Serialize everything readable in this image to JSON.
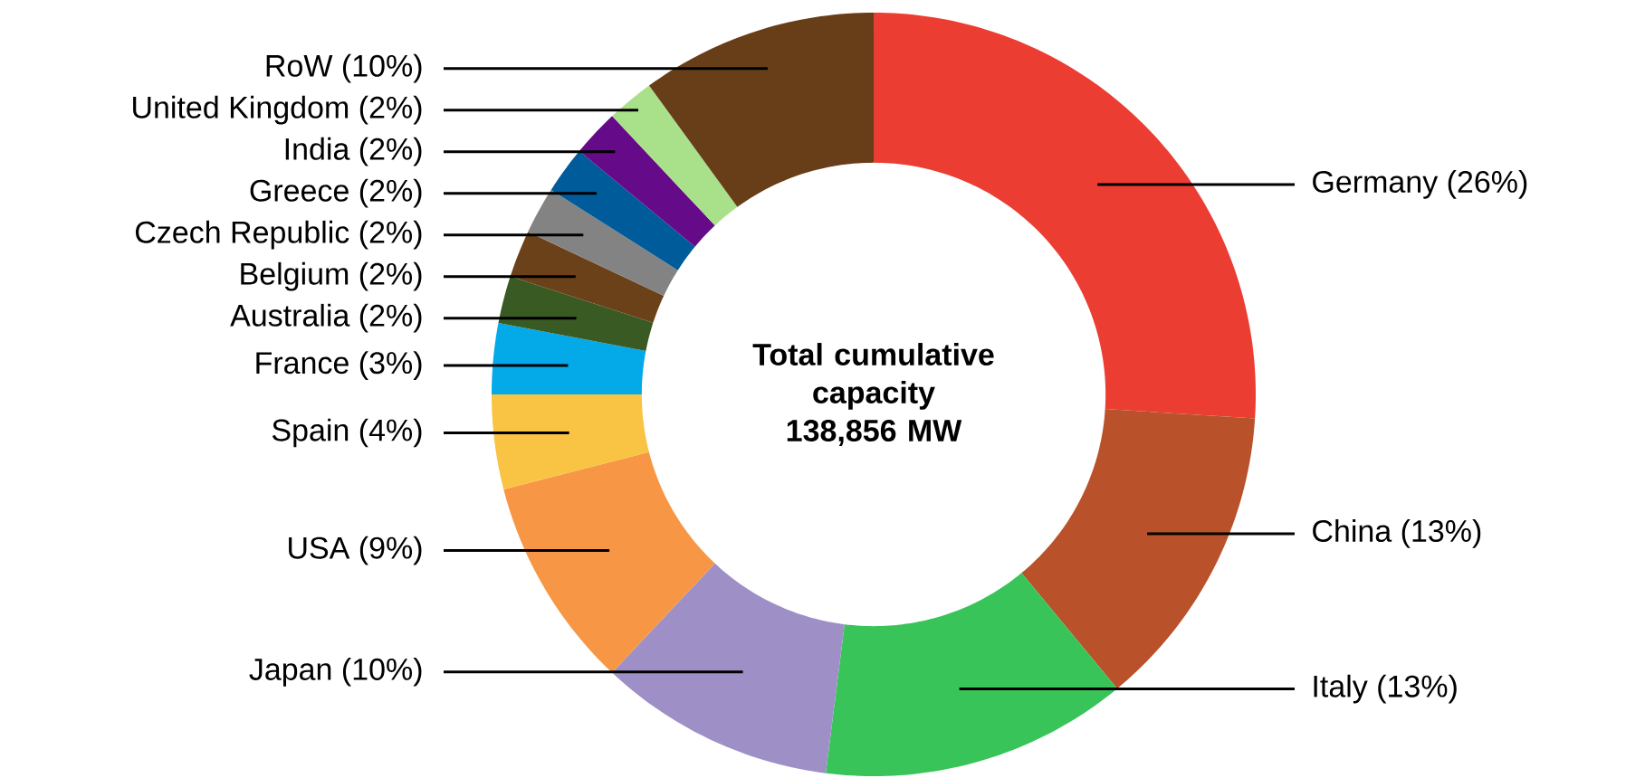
{
  "chart_data": {
    "type": "donut",
    "title": "Total cumulative capacity 138,856 MW",
    "categories": [
      "Germany (26%)",
      "China (13%)",
      "Italy (13%)",
      "Japan (10%)",
      "USA (9%)",
      "Spain (4%)",
      "France (3%)",
      "Australia (2%)",
      "Belgium (2%)",
      "Czech Republic (2%)",
      "Greece (2%)",
      "India (2%)",
      "United Kingdom (2%)",
      "RoW (10%)"
    ],
    "values": [
      26,
      13,
      13,
      10,
      9,
      4,
      3,
      2,
      2,
      2,
      2,
      2,
      2,
      10
    ],
    "colors": [
      "#ec3d32",
      "#b9522a",
      "#38c458",
      "#9e90c6",
      "#f79745",
      "#f9c343",
      "#04a9e8",
      "#3a5a23",
      "#6b4119",
      "#838383",
      "#005b9a",
      "#650a89",
      "#a9e08a",
      "#673e17"
    ]
  }
}
